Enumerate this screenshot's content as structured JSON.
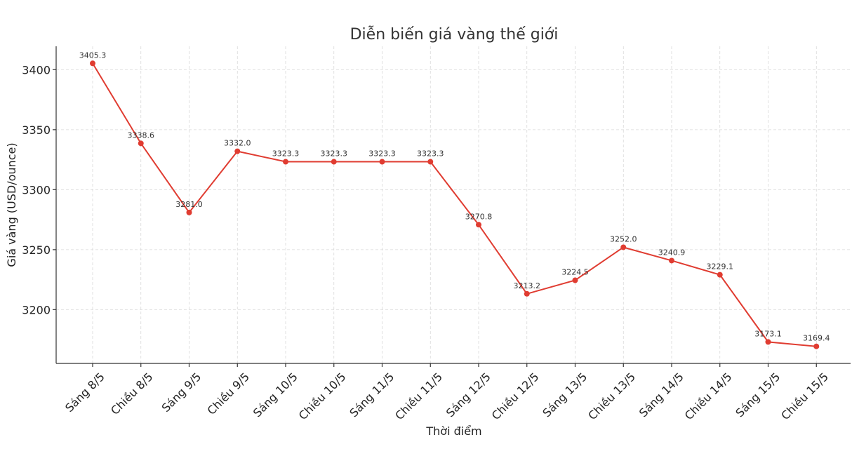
{
  "chart_data": {
    "type": "line",
    "title": "Diễn biến giá vàng thế giới",
    "xlabel": "Thời điểm",
    "ylabel": "Giá vàng (USD/ounce)",
    "categories": [
      "Sáng 8/5",
      "Chiều 8/5",
      "Sáng 9/5",
      "Chiều 9/5",
      "Sáng 10/5",
      "Chiều 10/5",
      "Sáng 11/5",
      "Chiều 11/5",
      "Sáng 12/5",
      "Chiều 12/5",
      "Sáng 13/5",
      "Chiều 13/5",
      "Sáng 14/5",
      "Chiều 14/5",
      "Sáng 15/5",
      "Chiều 15/5"
    ],
    "series": [
      {
        "values": [
          3405.3,
          3338.6,
          3281.0,
          3332.0,
          3323.3,
          3323.3,
          3323.3,
          3323.3,
          3270.8,
          3213.2,
          3224.5,
          3252.0,
          3240.9,
          3229.1,
          3173.1,
          3169.4
        ],
        "data_labels": [
          "3405.3",
          "3338.6",
          "3281.0",
          "3332.0",
          "3323.3",
          "3323.3",
          "3323.3",
          "3323.3",
          "3270.8",
          "3213.2",
          "3224.5",
          "3252.0",
          "3240.9",
          "3229.1",
          "3173.1",
          "3169.4"
        ],
        "color": "#e03c31"
      }
    ],
    "yticks": [
      3200,
      3250,
      3300,
      3350,
      3400
    ],
    "ylim": [
      3155.2,
      3419.5
    ],
    "grid": true,
    "legend": "none"
  }
}
